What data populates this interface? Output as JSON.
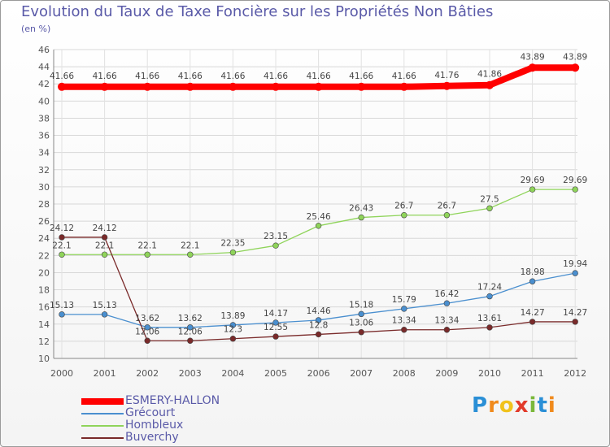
{
  "header": {
    "title": "Evolution du Taux de Taxe Foncière sur les Propriétés Non Bâties",
    "subtitle": "(en %)"
  },
  "brand": {
    "text": "Proxiti",
    "letters": [
      "P",
      "r",
      "o",
      "x",
      "i",
      "t",
      "i"
    ],
    "colors": [
      "#2a8fd6",
      "#f08a1c",
      "#f0c21c",
      "#e23a2a",
      "#7ab83a",
      "#2a8fd6",
      "#f08a1c"
    ]
  },
  "chart_data": {
    "type": "line",
    "title": "Evolution du Taux de Taxe Foncière sur les Propriétés Non Bâties",
    "ylabel": "(en %)",
    "xlabel": "",
    "x": [
      2000,
      2001,
      2002,
      2003,
      2004,
      2005,
      2006,
      2007,
      2008,
      2009,
      2010,
      2011,
      2012
    ],
    "ylim": [
      10,
      46
    ],
    "yticks": [
      10,
      12,
      14,
      16,
      18,
      20,
      22,
      24,
      26,
      28,
      30,
      32,
      34,
      36,
      38,
      40,
      42,
      44,
      46
    ],
    "grid": true,
    "legend": "bottom-left",
    "series": [
      {
        "name": "ESMERY-HALLON",
        "color": "#ff0000",
        "style": "thick",
        "values": [
          41.66,
          41.66,
          41.66,
          41.66,
          41.66,
          41.66,
          41.66,
          41.66,
          41.66,
          41.76,
          41.86,
          43.89,
          43.89
        ],
        "labels": [
          "41.66",
          "41.66",
          "41.66",
          "41.66",
          "41.66",
          "41.66",
          "41.66",
          "41.66",
          "41.66",
          "41.76",
          "41.86",
          "43.89",
          "43.89"
        ]
      },
      {
        "name": "Grécourt",
        "color": "#4a8fcf",
        "style": "marker",
        "values": [
          15.13,
          15.13,
          13.62,
          13.62,
          13.89,
          14.17,
          14.46,
          15.18,
          15.79,
          16.42,
          17.24,
          18.98,
          19.94
        ],
        "labels": [
          "15.13",
          "15.13",
          "13.62",
          "13.62",
          "13.89",
          "14.17",
          "14.46",
          "15.18",
          "15.79",
          "16.42",
          "17.24",
          "18.98",
          "19.94"
        ]
      },
      {
        "name": "Hombleux",
        "color": "#8fd45a",
        "style": "marker",
        "values": [
          22.1,
          22.1,
          22.1,
          22.1,
          22.35,
          23.15,
          25.46,
          26.43,
          26.7,
          26.7,
          27.5,
          29.69,
          29.69
        ],
        "labels": [
          "22.1",
          "22.1",
          "22.1",
          "22.1",
          "22.35",
          "23.15",
          "25.46",
          "26.43",
          "26.7",
          "26.7",
          "27.5",
          "29.69",
          "29.69"
        ]
      },
      {
        "name": "Buverchy",
        "color": "#7a2a2a",
        "style": "marker",
        "values": [
          24.12,
          24.12,
          12.06,
          12.06,
          12.3,
          12.55,
          12.8,
          13.06,
          13.34,
          13.34,
          13.61,
          14.27,
          14.27
        ],
        "labels": [
          "24.12",
          "24.12",
          "12.06",
          "12.06",
          "12.3",
          "12.55",
          "12.8",
          "13.06",
          "13.34",
          "13.34",
          "13.61",
          "14.27",
          "14.27"
        ]
      }
    ]
  }
}
